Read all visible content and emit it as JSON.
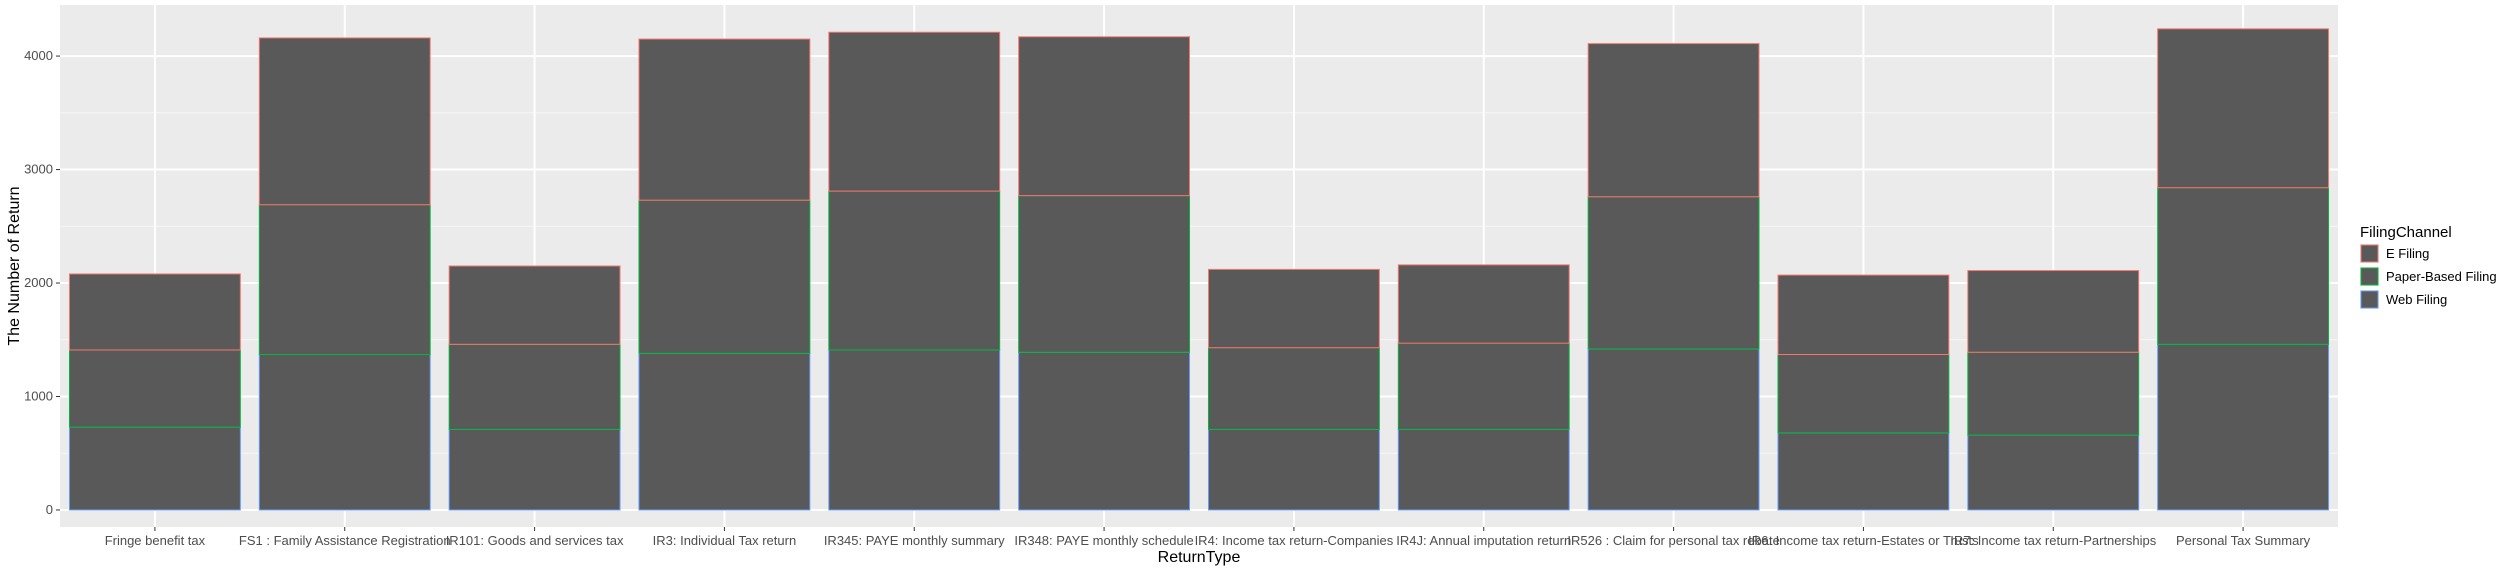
{
  "chart_data": {
    "type": "bar",
    "stacked": true,
    "title": "",
    "xlabel": "ReturnType",
    "ylabel": "The Number of Return",
    "ylim": [
      -150,
      4450
    ],
    "yticks": [
      0,
      1000,
      2000,
      3000,
      4000
    ],
    "grid": true,
    "legend_position": "right",
    "legend_title": "FilingChannel",
    "bar_fill": "#595959",
    "panel_background": "#ebebeb",
    "categories": [
      "Fringe benefit tax",
      "FS1 : Family Assistance Registration",
      "IR101: Goods and services tax",
      "IR3: Individual Tax return",
      "IR345: PAYE monthly summary",
      "IR348: PAYE monthly schedule",
      "IR4: Income tax return-Companies",
      "IR4J: Annual imputation return",
      "IR526 : Claim for personal tax rebate",
      "IR6: Income tax return-Estates or Trusts",
      "IR7: Income tax return-Partnerships",
      "Personal Tax Summary"
    ],
    "series": [
      {
        "name": "Web Filing",
        "color": "#619cff",
        "values": [
          730,
          1370,
          710,
          1380,
          1410,
          1390,
          710,
          710,
          1420,
          680,
          660,
          1460
        ]
      },
      {
        "name": "Paper-Based Filing",
        "color": "#00ba38",
        "values": [
          680,
          1320,
          750,
          1350,
          1400,
          1380,
          720,
          760,
          1340,
          690,
          730,
          1380
        ]
      },
      {
        "name": "E Filing",
        "color": "#f8766d",
        "values": [
          670,
          1470,
          690,
          1420,
          1400,
          1400,
          690,
          690,
          1350,
          700,
          720,
          1400
        ]
      }
    ],
    "legend_order": [
      "E Filing",
      "Paper-Based Filing",
      "Web Filing"
    ]
  }
}
